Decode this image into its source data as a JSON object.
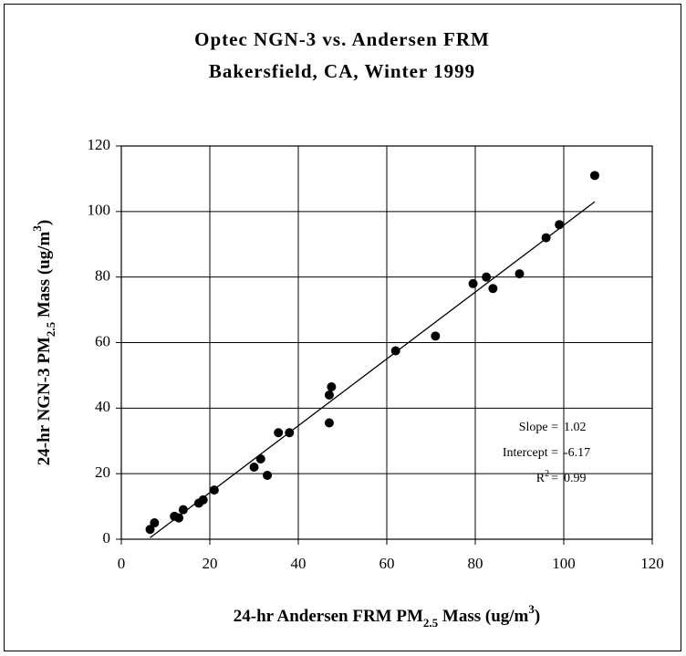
{
  "chart_data": {
    "type": "scatter",
    "title": [
      "Optec NGN-3 vs. Andersen FRM",
      "Bakersfield, CA, Winter 1999"
    ],
    "x_label": [
      "24-hr Andersen FRM PM",
      "2.5",
      " Mass (ug/m",
      "3",
      ")"
    ],
    "y_label": [
      "24-hr NGN-3 PM",
      "2.5",
      " Mass (ug/m",
      "3",
      ")"
    ],
    "series": [
      {
        "color": "#000000",
        "x": [
          6.5,
          7.5,
          12,
          13,
          14,
          17.5,
          18.5,
          21,
          30,
          31.5,
          33,
          35.5,
          38,
          47,
          47,
          47.5,
          62,
          71,
          79.5,
          82.5,
          84,
          90,
          96,
          99,
          107
        ],
        "values": [
          3,
          5,
          7,
          6.5,
          9,
          11,
          12,
          15,
          22,
          24.5,
          19.5,
          32.5,
          32.5,
          44,
          35.5,
          46.5,
          57.5,
          62,
          78,
          80,
          76.5,
          81,
          92,
          96,
          111
        ]
      }
    ],
    "fit": [
      {
        "label": "Slope =",
        "value": 1.02
      },
      {
        "label": "Intercept =",
        "value": -6.17
      },
      {
        "label": "R",
        "sup": "2",
        "rest": "=",
        "value": 0.99
      }
    ],
    "xlim": [
      0,
      120
    ],
    "xticks": [
      0,
      20,
      40,
      60,
      80,
      100,
      120
    ],
    "ylim": [
      0,
      120
    ],
    "yticks": [
      0,
      20,
      40,
      60,
      80,
      100,
      120
    ],
    "grid": true
  }
}
